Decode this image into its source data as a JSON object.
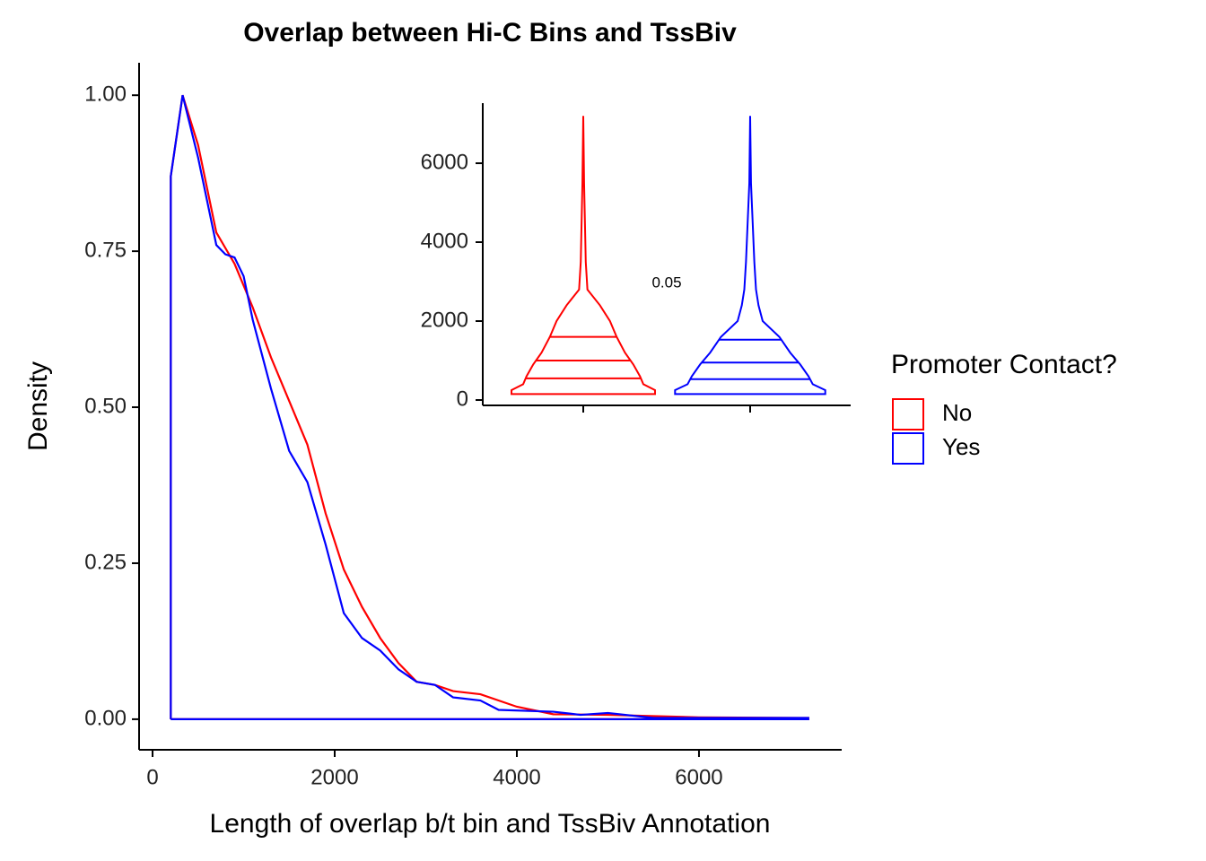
{
  "chart_data": [
    {
      "type": "density",
      "title": "Overlap between Hi-C Bins and TssBiv",
      "x_label": "Length of overlap b/t bin and TssBiv Annotation",
      "y_label": "Density",
      "legend_title": "Promoter Contact?",
      "legend": "right",
      "xlim": [
        -148,
        7567
      ],
      "ylim": [
        -0.049,
        1.052
      ],
      "xticks": [
        0,
        2000,
        4000,
        6000
      ],
      "yticks": [
        {
          "value": 0,
          "label": "0.00"
        },
        0.25,
        {
          "value": 0.5,
          "label": "0.50"
        },
        0.75,
        {
          "value": 1,
          "label": "1.00"
        }
      ],
      "series": [
        {
          "name": "No",
          "color": "#ff0000",
          "x": [
            200,
            200,
            330,
            500,
            700,
            900,
            1100,
            1300,
            1500,
            1700,
            1900,
            2100,
            2300,
            2500,
            2700,
            2900,
            3100,
            3300,
            3600,
            4000,
            4400,
            5000,
            6000,
            7200,
            7200,
            200
          ],
          "values": [
            0,
            0.87,
            1.0,
            0.92,
            0.78,
            0.73,
            0.66,
            0.58,
            0.51,
            0.44,
            0.33,
            0.24,
            0.18,
            0.13,
            0.09,
            0.06,
            0.055,
            0.045,
            0.04,
            0.02,
            0.008,
            0.007,
            0.003,
            0.002,
            0,
            0
          ]
        },
        {
          "name": "Yes",
          "color": "#0000ff",
          "x": [
            200,
            200,
            330,
            500,
            700,
            800,
            900,
            1000,
            1100,
            1300,
            1500,
            1700,
            1900,
            2100,
            2300,
            2500,
            2700,
            2900,
            3100,
            3300,
            3600,
            3800,
            4400,
            4700,
            5000,
            5500,
            7200,
            7200,
            200
          ],
          "values": [
            0,
            0.87,
            1.0,
            0.9,
            0.76,
            0.745,
            0.74,
            0.71,
            0.64,
            0.53,
            0.43,
            0.38,
            0.28,
            0.17,
            0.13,
            0.11,
            0.08,
            0.06,
            0.055,
            0.035,
            0.03,
            0.015,
            0.012,
            0.007,
            0.01,
            0.002,
            0.002,
            0,
            0
          ]
        }
      ]
    },
    {
      "type": "violin",
      "annotation": "0.05",
      "ylim": [
        -136,
        7523
      ],
      "yticks": [
        0,
        2000,
        4000,
        6000
      ],
      "violin_y": [
        150,
        250,
        400,
        600,
        900,
        1200,
        1600,
        2000,
        2400,
        2800,
        3500,
        4500,
        5500,
        7200
      ],
      "series": [
        {
          "color": "#ff0000",
          "half_width": [
            0.86,
            0.86,
            0.72,
            0.68,
            0.6,
            0.5,
            0.4,
            0.32,
            0.2,
            0.05,
            0.03,
            0.02,
            0.01,
            0
          ],
          "quantiles": [
            550,
            1000,
            1600
          ]
        },
        {
          "color": "#0000ff",
          "half_width": [
            0.9,
            0.9,
            0.75,
            0.7,
            0.6,
            0.48,
            0.35,
            0.15,
            0.1,
            0.07,
            0.05,
            0.03,
            0.01,
            0
          ],
          "quantiles": [
            530,
            950,
            1530
          ]
        }
      ]
    }
  ]
}
